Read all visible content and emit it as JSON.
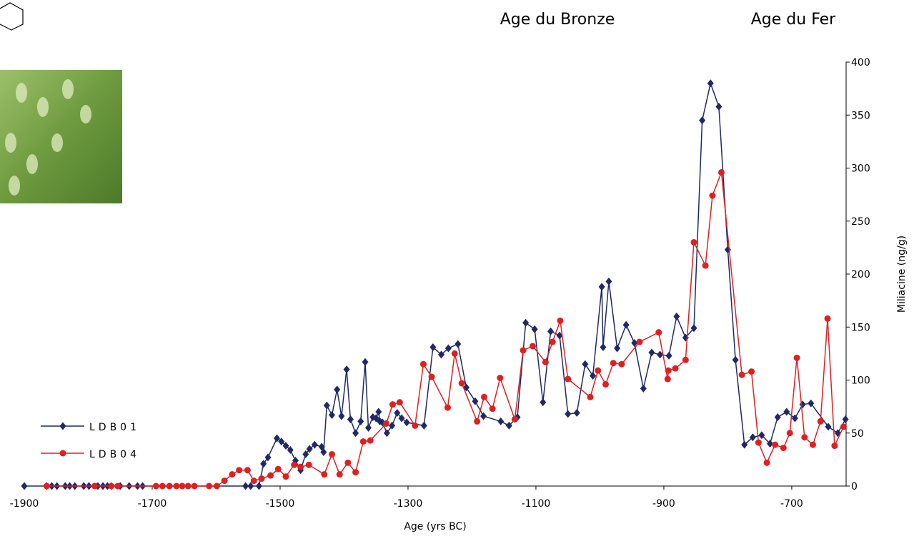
{
  "chart_data": {
    "type": "line",
    "annotations": [
      "Age du Bronze",
      "Age du Fer"
    ],
    "x_label": "Age (yrs BC)",
    "y_label": "Miliacine (ng/g)",
    "xlim": [
      -1900,
      -615
    ],
    "xticks": [
      -1900,
      -1700,
      -1500,
      -1300,
      -1100,
      -900,
      -700
    ],
    "ylim": [
      0,
      400
    ],
    "yticks": [
      0,
      50,
      100,
      150,
      200,
      250,
      300,
      350,
      400
    ],
    "grid": false,
    "legend": "lower left",
    "series": [
      {
        "name": "LDB01",
        "color": "#1f2868",
        "marker": "diamond",
        "x": [
          -1900,
          -1865,
          -1857,
          -1849,
          -1836,
          -1829,
          -1821,
          -1807,
          -1799,
          -1785,
          -1777,
          -1770,
          -1764,
          -1750,
          -1736,
          -1723,
          -1715,
          -1554,
          -1546,
          -1533,
          -1526,
          -1519,
          -1505,
          -1498,
          -1491,
          -1484,
          -1476,
          -1468,
          -1460,
          -1454,
          -1446,
          -1435,
          -1432,
          -1427,
          -1419,
          -1411,
          -1404,
          -1396,
          -1390,
          -1382,
          -1374,
          -1367,
          -1362,
          -1355,
          -1350,
          -1346,
          -1344,
          -1340,
          -1333,
          -1325,
          -1317,
          -1310,
          -1302,
          -1275,
          -1261,
          -1248,
          -1237,
          -1222,
          -1209,
          -1195,
          -1182,
          -1155,
          -1142,
          -1129,
          -1116,
          -1102,
          -1089,
          -1077,
          -1063,
          -1050,
          -1036,
          -1023,
          -1011,
          -997,
          -995,
          -986,
          -973,
          -959,
          -946,
          -932,
          -919,
          -906,
          -892,
          -880,
          -866,
          -853,
          -840,
          -827,
          -814,
          -800,
          -788,
          -774,
          -761,
          -747,
          -734,
          -722,
          -708,
          -695,
          -683,
          -670,
          -643,
          -628,
          -616
        ],
        "values": [
          0,
          0,
          0,
          0,
          0,
          0,
          0,
          0,
          0,
          0,
          0,
          0,
          0,
          0,
          0,
          0,
          0,
          0,
          0,
          0,
          21,
          27,
          45,
          42,
          38,
          34,
          24,
          15,
          30,
          35,
          39,
          37,
          32,
          76,
          67,
          91,
          66,
          110,
          63,
          50,
          61,
          117,
          55,
          65,
          64,
          70,
          61,
          60,
          50,
          57,
          69,
          64,
          60,
          57,
          131,
          124,
          130,
          134,
          93,
          80,
          66,
          61,
          57,
          65,
          154,
          148,
          79,
          146,
          142,
          68,
          69,
          115,
          104,
          188,
          131,
          193,
          130,
          152,
          135,
          92,
          126,
          124,
          123,
          160,
          140,
          149,
          345,
          380,
          358,
          223,
          119,
          39,
          46,
          48,
          40,
          65,
          70,
          64,
          77,
          78,
          56,
          50,
          63
        ]
      },
      {
        "name": "LDB04",
        "color": "#e02020",
        "marker": "circle",
        "x": [
          -1865,
          -1790,
          -1764,
          -1754,
          -1694,
          -1684,
          -1673,
          -1662,
          -1653,
          -1644,
          -1634,
          -1611,
          -1599,
          -1587,
          -1575,
          -1564,
          -1551,
          -1541,
          -1529,
          -1515,
          -1503,
          -1491,
          -1478,
          -1468,
          -1455,
          -1431,
          -1419,
          -1407,
          -1394,
          -1382,
          -1370,
          -1359,
          -1334,
          -1324,
          -1313,
          -1289,
          -1276,
          -1263,
          -1238,
          -1227,
          -1216,
          -1192,
          -1181,
          -1168,
          -1156,
          -1133,
          -1120,
          -1105,
          -1085,
          -1074,
          -1062,
          -1050,
          -1015,
          -1003,
          -991,
          -979,
          -966,
          -938,
          -908,
          -894,
          -893,
          -882,
          -866,
          -853,
          -835,
          -824,
          -810,
          -778,
          -763,
          -752,
          -739,
          -726,
          -713,
          -703,
          -692,
          -680,
          -667,
          -655,
          -644,
          -633,
          -619
        ],
        "values": [
          0,
          0,
          0,
          0,
          0,
          0,
          0,
          0,
          0,
          0,
          0,
          0,
          0,
          5,
          11,
          15,
          15,
          5,
          7,
          10,
          16,
          9,
          20,
          18,
          20,
          11,
          30,
          11,
          22,
          13,
          42,
          43,
          59,
          77,
          79,
          57,
          115,
          103,
          74,
          125,
          97,
          61,
          84,
          73,
          102,
          63,
          128,
          132,
          117,
          136,
          156,
          101,
          84,
          109,
          96,
          116,
          115,
          136,
          145,
          101,
          109,
          111,
          119,
          230,
          208,
          274,
          296,
          105,
          108,
          41,
          22,
          39,
          36,
          50,
          121,
          46,
          39,
          61,
          158,
          38,
          56
        ]
      }
    ]
  }
}
